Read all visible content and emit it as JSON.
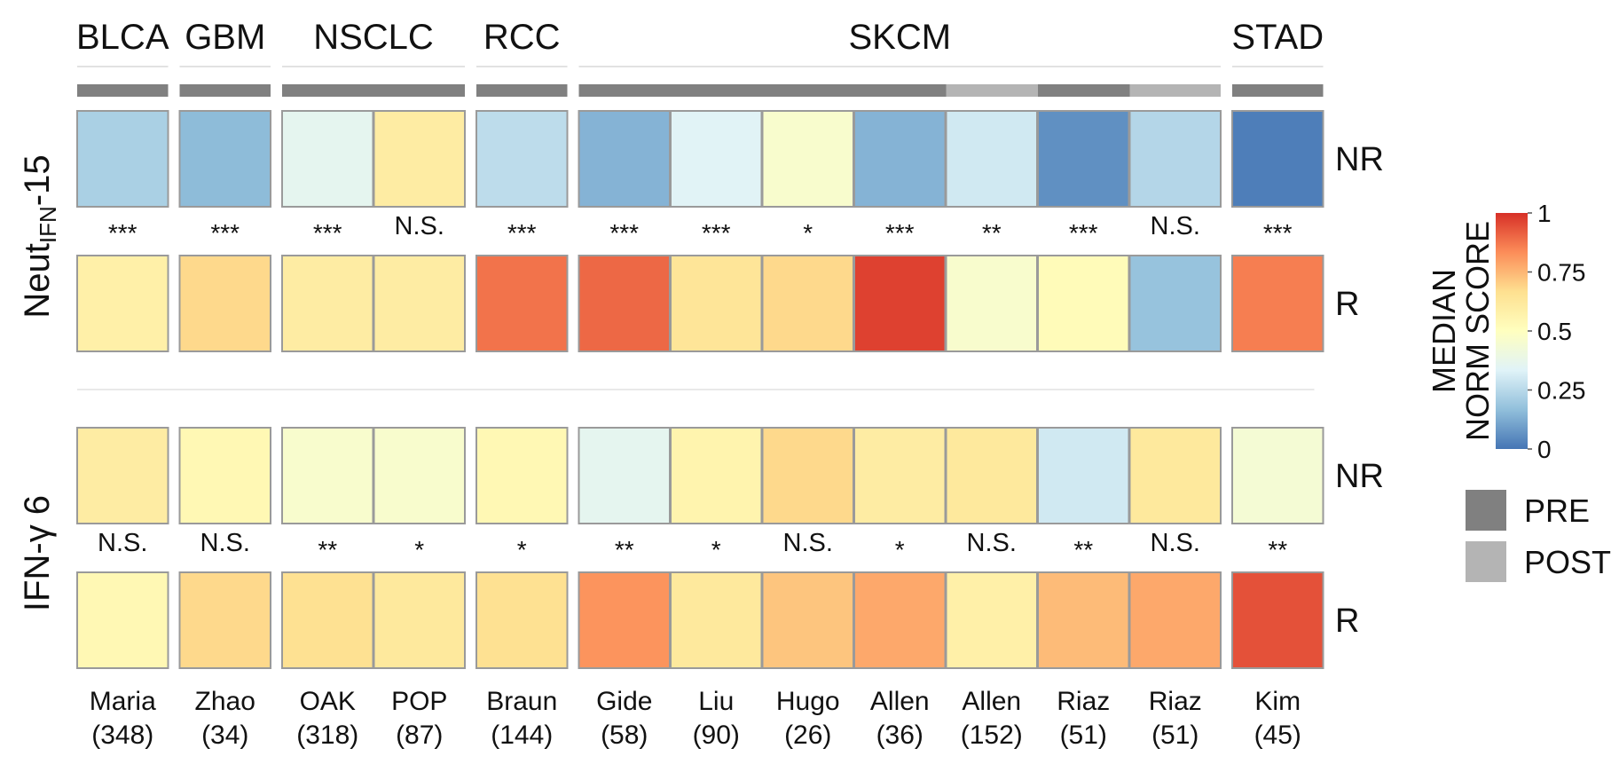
{
  "chart_data": {
    "type": "heatmap",
    "cancer_types": [
      {
        "name": "BLCA",
        "columns": [
          0
        ]
      },
      {
        "name": "GBM",
        "columns": [
          1
        ]
      },
      {
        "name": "NSCLC",
        "columns": [
          2,
          3
        ]
      },
      {
        "name": "RCC",
        "columns": [
          4
        ]
      },
      {
        "name": "SKCM",
        "columns": [
          5,
          6,
          7,
          8,
          9,
          10,
          11
        ]
      },
      {
        "name": "STAD",
        "columns": [
          12
        ]
      }
    ],
    "studies": [
      {
        "name": "Maria",
        "n": "(348)",
        "timepoint": "PRE"
      },
      {
        "name": "Zhao",
        "n": "(34)",
        "timepoint": "PRE"
      },
      {
        "name": "OAK",
        "n": "(318)",
        "timepoint": "PRE"
      },
      {
        "name": "POP",
        "n": "(87)",
        "timepoint": "PRE"
      },
      {
        "name": "Braun",
        "n": "(144)",
        "timepoint": "PRE"
      },
      {
        "name": "Gide",
        "n": "(58)",
        "timepoint": "PRE"
      },
      {
        "name": "Liu",
        "n": "(90)",
        "timepoint": "PRE"
      },
      {
        "name": "Hugo",
        "n": "(26)",
        "timepoint": "PRE"
      },
      {
        "name": "Allen",
        "n": "(36)",
        "timepoint": "PRE"
      },
      {
        "name": "Allen",
        "n": "(152)",
        "timepoint": "POST"
      },
      {
        "name": "Riaz",
        "n": "(51)",
        "timepoint": "PRE"
      },
      {
        "name": "Riaz",
        "n": "(51)",
        "timepoint": "POST"
      },
      {
        "name": "Kim",
        "n": "(45)",
        "timepoint": "PRE"
      }
    ],
    "panels": [
      {
        "name_main": "Neut",
        "name_sub": "IFN",
        "name_suffix": "-15",
        "rows": [
          {
            "label": "NR",
            "values": [
              0.22,
              0.16,
              0.36,
              0.6,
              0.26,
              0.14,
              0.34,
              0.46,
              0.14,
              0.3,
              0.06,
              0.24,
              0.02
            ]
          },
          {
            "label": "R",
            "values": [
              0.58,
              0.68,
              0.6,
              0.6,
              0.88,
              0.9,
              0.64,
              0.68,
              0.97,
              0.46,
              0.52,
              0.18,
              0.86
            ]
          }
        ],
        "significance": [
          "***",
          "***",
          "***",
          "N.S.",
          "***",
          "***",
          "***",
          "*",
          "***",
          "**",
          "***",
          "N.S.",
          "***"
        ]
      },
      {
        "name_main": "IFN-γ 6",
        "name_sub": "",
        "name_suffix": "",
        "rows": [
          {
            "label": "NR",
            "values": [
              0.6,
              0.54,
              0.46,
              0.46,
              0.54,
              0.36,
              0.56,
              0.68,
              0.6,
              0.62,
              0.3,
              0.62,
              0.44
            ]
          },
          {
            "label": "R",
            "values": [
              0.54,
              0.68,
              0.66,
              0.62,
              0.66,
              0.82,
              0.62,
              0.72,
              0.78,
              0.58,
              0.74,
              0.78,
              0.94
            ]
          }
        ],
        "significance": [
          "N.S.",
          "N.S.",
          "**",
          "*",
          "*",
          "**",
          "*",
          "N.S.",
          "*",
          "N.S.",
          "**",
          "N.S.",
          "**"
        ]
      }
    ],
    "colorbar": {
      "title_line1": "MEDIAN",
      "title_line2": "NORM SCORE",
      "range": [
        0,
        1
      ],
      "ticks": [
        "0",
        "0.25",
        "0.5",
        "0.75",
        "1"
      ],
      "colorscale": [
        "#4575b4",
        "#91bfdb",
        "#e0f3f8",
        "#ffffbf",
        "#fee090",
        "#fc8d59",
        "#d73027"
      ]
    },
    "timepoint_legend": [
      {
        "label": "PRE",
        "color": "#808080"
      },
      {
        "label": "POST",
        "color": "#b4b4b4"
      }
    ]
  }
}
